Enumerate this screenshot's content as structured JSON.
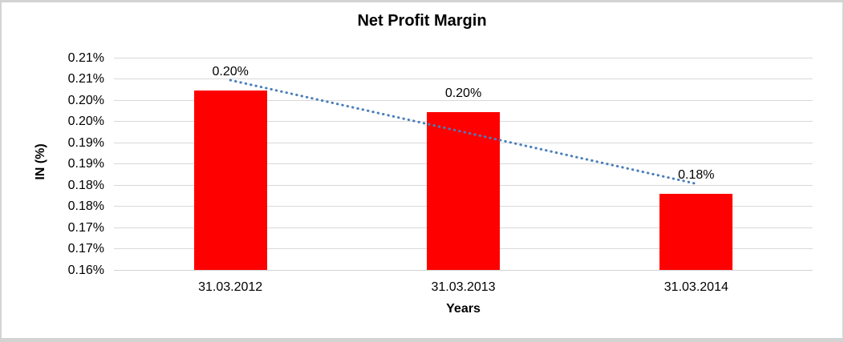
{
  "window": {
    "background": "#ffffff",
    "border_color": "#d3d3d3"
  },
  "chart_data": {
    "type": "bar",
    "title": "Net Profit Margin",
    "xlabel": "Years",
    "ylabel": "IN (%)",
    "categories": [
      "31.03.2012",
      "31.03.2013",
      "31.03.2014"
    ],
    "values": [
      0.2023,
      0.1972,
      0.1779
    ],
    "value_labels": [
      "0.20%",
      "0.20%",
      "0.18%"
    ],
    "unit": "percent",
    "ylim": [
      0.16,
      0.21
    ],
    "ytick_step": 0.005,
    "yticks": [
      {
        "value": 0.16,
        "label": "0.16%"
      },
      {
        "value": 0.165,
        "label": "0.17%"
      },
      {
        "value": 0.17,
        "label": "0.17%"
      },
      {
        "value": 0.175,
        "label": "0.18%"
      },
      {
        "value": 0.18,
        "label": "0.18%"
      },
      {
        "value": 0.185,
        "label": "0.19%"
      },
      {
        "value": 0.19,
        "label": "0.19%"
      },
      {
        "value": 0.195,
        "label": "0.20%"
      },
      {
        "value": 0.2,
        "label": "0.20%"
      },
      {
        "value": 0.205,
        "label": "0.21%"
      },
      {
        "value": 0.21,
        "label": "0.21%"
      }
    ],
    "grid": true,
    "legend": false,
    "colors": {
      "bar": "#ff0000",
      "gridline": "#d9d9d9",
      "axis_line": "#d3d3d3",
      "trendline": "#4a7ebb",
      "text": "#000000"
    },
    "trendline": {
      "style": "dotted",
      "start_category_index": 0,
      "start_value": 0.2047,
      "end_category_index": 2,
      "end_value": 0.1803
    }
  }
}
